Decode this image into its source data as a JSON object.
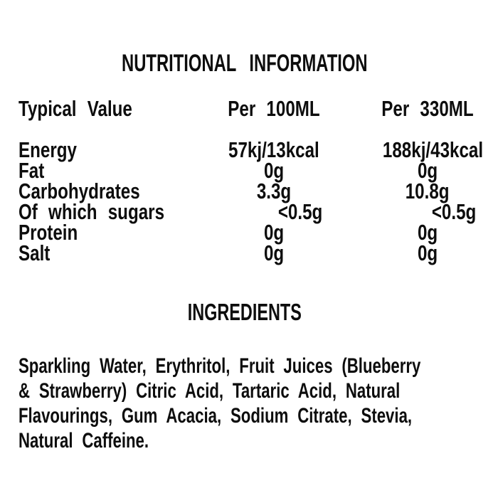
{
  "title": "NUTRITIONAL INFORMATION",
  "table": {
    "headers": {
      "label": "Typical Value",
      "per100": "Per 100ML",
      "per330": "Per 330ML"
    },
    "rows": [
      {
        "label": "Energy",
        "per100": "57kj/13kcal",
        "per330": "188kj/43kcal"
      },
      {
        "label": "Fat",
        "per100": "0g",
        "per330": "0g"
      },
      {
        "label": "Carbohydrates",
        "per100": "3.3g",
        "per330": "10.8g"
      },
      {
        "label": "Of which sugars",
        "per100": "<0.5g",
        "per330": "<0.5g"
      },
      {
        "label": "Protein",
        "per100": "0g",
        "per330": "0g"
      },
      {
        "label": "Salt",
        "per100": "0g",
        "per330": "0g"
      }
    ]
  },
  "ingredients": {
    "heading": "INGREDIENTS",
    "lines": [
      "Sparkling Water, Erythritol, Fruit Juices (Blueberry",
      "& Strawberry) Citric Acid, Tartaric Acid, Natural",
      "Flavourings, Gum Acacia, Sodium Citrate, Stevia,",
      "Natural Caffeine."
    ]
  },
  "colors": {
    "text": "#0d0d0d",
    "background": "#ffffff"
  }
}
